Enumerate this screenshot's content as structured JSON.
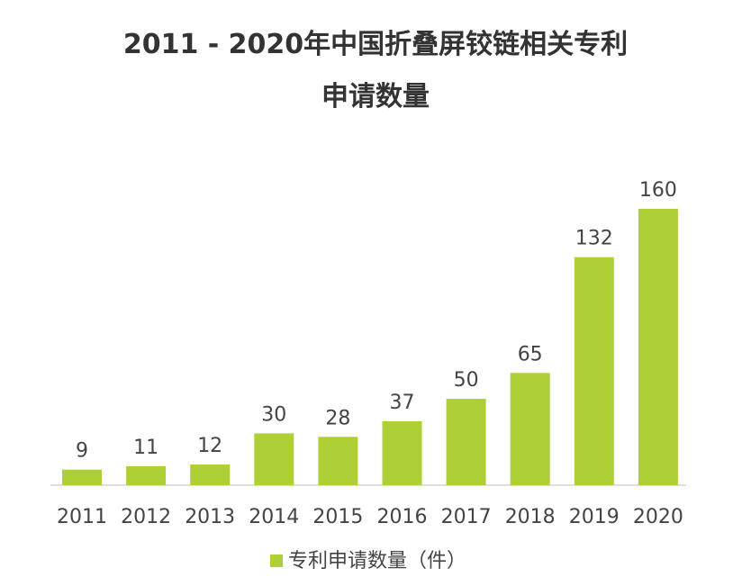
{
  "chart_data": {
    "type": "bar",
    "title": "2011 - 2020年中国折叠屏铰链相关专利",
    "subtitle": "申请数量",
    "categories": [
      "2011",
      "2012",
      "2013",
      "2014",
      "2015",
      "2016",
      "2017",
      "2018",
      "2019",
      "2020"
    ],
    "series": [
      {
        "name": "专利申请数量（件）",
        "values": [
          9,
          11,
          12,
          30,
          28,
          37,
          50,
          65,
          132,
          160
        ],
        "color": "#aecf36"
      }
    ],
    "ylim": [
      0,
      160
    ],
    "grid": false,
    "legend": "bottom-center",
    "data_labels": true
  }
}
